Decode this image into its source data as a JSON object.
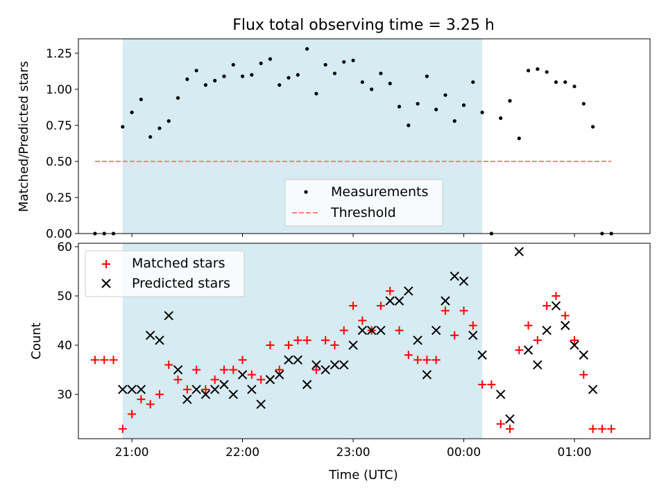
{
  "chart_data": [
    {
      "type": "scatter",
      "title": "Flux total observing time = 3.25 h",
      "xlabel": "",
      "ylabel": "Matched/Predicted stars",
      "xlim": [
        "20:31",
        "01:41"
      ],
      "ylim": [
        0,
        1.35
      ],
      "yticks": [
        "0.00",
        "0.25",
        "0.50",
        "0.75",
        "1.00",
        "1.25"
      ],
      "shaded_interval": [
        "20:55",
        "00:10"
      ],
      "shade_color": "#add8e6",
      "legend": {
        "placement": "lower center",
        "entries": [
          "Measurements",
          "Threshold"
        ]
      },
      "series": [
        {
          "name": "Measurements",
          "marker": "dot",
          "color": "#000000",
          "points": [
            [
              "20:40",
              0.0
            ],
            [
              "20:45",
              0.0
            ],
            [
              "20:50",
              0.0
            ],
            [
              "20:55",
              0.74
            ],
            [
              "21:00",
              0.84
            ],
            [
              "21:05",
              0.93
            ],
            [
              "21:10",
              0.67
            ],
            [
              "21:15",
              0.73
            ],
            [
              "21:20",
              0.78
            ],
            [
              "21:25",
              0.94
            ],
            [
              "21:30",
              1.07
            ],
            [
              "21:35",
              1.13
            ],
            [
              "21:40",
              1.03
            ],
            [
              "21:45",
              1.06
            ],
            [
              "21:50",
              1.09
            ],
            [
              "21:55",
              1.17
            ],
            [
              "22:00",
              1.09
            ],
            [
              "22:05",
              1.1
            ],
            [
              "22:10",
              1.18
            ],
            [
              "22:15",
              1.21
            ],
            [
              "22:20",
              1.03
            ],
            [
              "22:25",
              1.08
            ],
            [
              "22:30",
              1.1
            ],
            [
              "22:35",
              1.28
            ],
            [
              "22:40",
              0.97
            ],
            [
              "22:45",
              1.17
            ],
            [
              "22:50",
              1.11
            ],
            [
              "22:55",
              1.19
            ],
            [
              "23:00",
              1.2
            ],
            [
              "23:05",
              1.05
            ],
            [
              "23:10",
              1.0
            ],
            [
              "23:15",
              1.11
            ],
            [
              "23:20",
              1.04
            ],
            [
              "23:25",
              0.88
            ],
            [
              "23:30",
              0.75
            ],
            [
              "23:35",
              0.9
            ],
            [
              "23:40",
              1.09
            ],
            [
              "23:45",
              0.86
            ],
            [
              "23:50",
              0.96
            ],
            [
              "23:55",
              0.78
            ],
            [
              "00:00",
              0.89
            ],
            [
              "00:05",
              1.05
            ],
            [
              "00:10",
              0.84
            ],
            [
              "00:15",
              0.0
            ],
            [
              "00:20",
              0.8
            ],
            [
              "00:25",
              0.92
            ],
            [
              "00:30",
              0.66
            ],
            [
              "00:35",
              1.13
            ],
            [
              "00:40",
              1.14
            ],
            [
              "00:45",
              1.12
            ],
            [
              "00:50",
              1.05
            ],
            [
              "00:55",
              1.05
            ],
            [
              "01:00",
              1.02
            ],
            [
              "01:05",
              0.9
            ],
            [
              "01:10",
              0.74
            ],
            [
              "01:15",
              0.0
            ],
            [
              "01:20",
              0.0
            ]
          ]
        },
        {
          "name": "Threshold",
          "style": "dashed",
          "color": "#ff7f7f",
          "points": [
            [
              "20:40",
              0.5
            ],
            [
              "01:20",
              0.5
            ]
          ]
        }
      ]
    },
    {
      "type": "scatter",
      "title": "",
      "xlabel": "Time (UTC)",
      "ylabel": "Count",
      "xlim": [
        "20:31",
        "01:41"
      ],
      "ylim": [
        21,
        60.7
      ],
      "xticks": [
        "21:00",
        "22:00",
        "23:00",
        "00:00",
        "01:00"
      ],
      "yticks": [
        "30",
        "40",
        "50",
        "60"
      ],
      "shaded_interval": [
        "20:55",
        "00:10"
      ],
      "shade_color": "#add8e6",
      "legend": {
        "placement": "top-left",
        "entries": [
          "Matched stars",
          "Predicted stars"
        ]
      },
      "series": [
        {
          "name": "Matched stars",
          "marker": "plus",
          "color": "#ff0000",
          "points": [
            [
              "20:40",
              37
            ],
            [
              "20:45",
              37
            ],
            [
              "20:50",
              37
            ],
            [
              "20:55",
              23
            ],
            [
              "21:00",
              26
            ],
            [
              "21:05",
              29
            ],
            [
              "21:10",
              28
            ],
            [
              "21:15",
              30
            ],
            [
              "21:20",
              36
            ],
            [
              "21:25",
              33
            ],
            [
              "21:30",
              31
            ],
            [
              "21:35",
              35
            ],
            [
              "21:40",
              31
            ],
            [
              "21:45",
              33
            ],
            [
              "21:50",
              35
            ],
            [
              "21:55",
              35
            ],
            [
              "22:00",
              37
            ],
            [
              "22:05",
              34
            ],
            [
              "22:10",
              33
            ],
            [
              "22:15",
              40
            ],
            [
              "22:20",
              35
            ],
            [
              "22:25",
              40
            ],
            [
              "22:30",
              41
            ],
            [
              "22:35",
              41
            ],
            [
              "22:40",
              35
            ],
            [
              "22:45",
              41
            ],
            [
              "22:50",
              40
            ],
            [
              "22:55",
              43
            ],
            [
              "23:00",
              48
            ],
            [
              "23:05",
              45
            ],
            [
              "23:10",
              43
            ],
            [
              "23:15",
              48
            ],
            [
              "23:20",
              51
            ],
            [
              "23:25",
              43
            ],
            [
              "23:30",
              38
            ],
            [
              "23:35",
              37
            ],
            [
              "23:40",
              37
            ],
            [
              "23:45",
              37
            ],
            [
              "23:50",
              47
            ],
            [
              "23:55",
              42
            ],
            [
              "00:00",
              47
            ],
            [
              "00:05",
              44
            ],
            [
              "00:10",
              32
            ],
            [
              "00:15",
              32
            ],
            [
              "00:20",
              24
            ],
            [
              "00:25",
              23
            ],
            [
              "00:30",
              39
            ],
            [
              "00:35",
              44
            ],
            [
              "00:40",
              41
            ],
            [
              "00:45",
              48
            ],
            [
              "00:50",
              50
            ],
            [
              "00:55",
              46
            ],
            [
              "01:00",
              41
            ],
            [
              "01:05",
              34
            ],
            [
              "01:10",
              23
            ],
            [
              "01:15",
              23
            ],
            [
              "01:20",
              23
            ]
          ]
        },
        {
          "name": "Predicted stars",
          "marker": "x",
          "color": "#000000",
          "points": [
            [
              "20:55",
              31
            ],
            [
              "21:00",
              31
            ],
            [
              "21:05",
              31
            ],
            [
              "21:10",
              42
            ],
            [
              "21:15",
              41
            ],
            [
              "21:20",
              46
            ],
            [
              "21:25",
              35
            ],
            [
              "21:30",
              29
            ],
            [
              "21:35",
              31
            ],
            [
              "21:40",
              30
            ],
            [
              "21:45",
              31
            ],
            [
              "21:50",
              32
            ],
            [
              "21:55",
              30
            ],
            [
              "22:00",
              34
            ],
            [
              "22:05",
              31
            ],
            [
              "22:10",
              28
            ],
            [
              "22:15",
              33
            ],
            [
              "22:20",
              34
            ],
            [
              "22:25",
              37
            ],
            [
              "22:30",
              37
            ],
            [
              "22:35",
              32
            ],
            [
              "22:40",
              36
            ],
            [
              "22:45",
              35
            ],
            [
              "22:50",
              36
            ],
            [
              "22:55",
              36
            ],
            [
              "23:00",
              40
            ],
            [
              "23:05",
              43
            ],
            [
              "23:10",
              43
            ],
            [
              "23:15",
              43
            ],
            [
              "23:20",
              49
            ],
            [
              "23:25",
              49
            ],
            [
              "23:30",
              51
            ],
            [
              "23:35",
              41
            ],
            [
              "23:40",
              34
            ],
            [
              "23:45",
              43
            ],
            [
              "23:50",
              49
            ],
            [
              "23:55",
              54
            ],
            [
              "00:00",
              53
            ],
            [
              "00:05",
              42
            ],
            [
              "00:10",
              38
            ],
            [
              "00:20",
              30
            ],
            [
              "00:25",
              25
            ],
            [
              "00:30",
              59
            ],
            [
              "00:35",
              39
            ],
            [
              "00:40",
              36
            ],
            [
              "00:45",
              43
            ],
            [
              "00:50",
              48
            ],
            [
              "00:55",
              44
            ],
            [
              "01:00",
              40
            ],
            [
              "01:05",
              38
            ],
            [
              "01:10",
              31
            ]
          ]
        }
      ]
    }
  ]
}
